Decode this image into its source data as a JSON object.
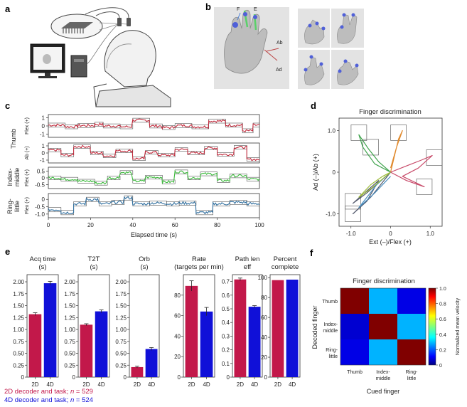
{
  "panels": {
    "a": "a",
    "b": "b",
    "c": "c",
    "d": "d",
    "e": "e",
    "f": "f"
  },
  "panel_b_labels": {
    "Ab": "Ab",
    "Ad": "Ad",
    "F": "F",
    "E": "E"
  },
  "colors": {
    "red": "#c2184a",
    "blue": "#1010d8",
    "thumb_trace": "#c0283a",
    "index_trace": "#3dbb3d",
    "ring_trace": "#2f6e9e",
    "target_box": "#555555"
  },
  "chart_data": [
    {
      "type": "line",
      "panel": "c",
      "xlabel": "Elapsed time (s)",
      "x_ticks": [
        0,
        20,
        40,
        60,
        80,
        100
      ],
      "xlim": [
        0,
        100
      ],
      "rows": [
        {
          "group": "Thumb",
          "label": "Flex (+)",
          "y_ticks": [
            1,
            0,
            -1
          ],
          "y_tick_labels": [
            "1",
            "0",
            "-1"
          ],
          "color": "#c0283a"
        },
        {
          "group": "Thumb",
          "label": "Ab (+)",
          "y_ticks": [
            1,
            0,
            -1
          ],
          "y_tick_labels": [
            "1",
            "0",
            "-1"
          ],
          "color": "#c0283a"
        },
        {
          "group": "Index-middle",
          "label": "Flex (+)",
          "y_ticks": [
            0.5,
            0,
            -0.5
          ],
          "y_tick_labels": [
            "0.5",
            "0",
            "-0.5"
          ],
          "color": "#3dbb3d"
        },
        {
          "group": "Ring-little",
          "label": "Flex (+)",
          "y_ticks": [
            0,
            -0.5,
            -1.0
          ],
          "y_tick_labels": [
            "0",
            "-0.5",
            "-1.0"
          ],
          "color": "#2f6e9e"
        }
      ],
      "groups": [
        "Thumb",
        "Index-middle",
        "Ring-little"
      ],
      "group_label_lines": {
        "Thumb": [
          "Thumb"
        ],
        "Index-middle": [
          "Index-",
          "middle"
        ],
        "Ring-little": [
          "Ring-",
          "little"
        ]
      }
    },
    {
      "type": "line",
      "panel": "d",
      "title": "Finger discrimination",
      "xlabel": "Ext (–)/Flex (+)",
      "ylabel": "Ad (–)/Ab (+)",
      "xlim": [
        -1.3,
        1.3
      ],
      "ylim": [
        -1.3,
        1.3
      ],
      "x_ticks": [
        -1.0,
        0,
        1.0
      ],
      "x_tick_labels": [
        "-1.0",
        "0",
        "1.0"
      ],
      "y_ticks": [
        1.0,
        0,
        -1.0
      ],
      "y_tick_labels": [
        "1.0",
        "0",
        "-1.0"
      ],
      "targets": [
        [
          -0.95,
          -0.7
        ],
        [
          -0.8,
          0.95
        ],
        [
          -0.5,
          0.6
        ],
        [
          0.2,
          0.95
        ],
        [
          1.1,
          0.35
        ],
        [
          0.85,
          -0.35
        ],
        [
          -0.95,
          -1.0
        ]
      ],
      "trajectories": [
        {
          "color": "#3fa34d",
          "points": [
            [
              0,
              0
            ],
            [
              -0.3,
              0.25
            ],
            [
              -0.55,
              0.55
            ],
            [
              -0.8,
              0.9
            ],
            [
              -0.7,
              0.6
            ],
            [
              -0.4,
              0.2
            ],
            [
              0,
              0
            ]
          ]
        },
        {
          "color": "#e08a2e",
          "points": [
            [
              0,
              0
            ],
            [
              0.1,
              0.4
            ],
            [
              0.2,
              0.8
            ],
            [
              0.3,
              1.0
            ],
            [
              0.15,
              0.6
            ],
            [
              0,
              0.1
            ]
          ]
        },
        {
          "color": "#c84b6a",
          "points": [
            [
              0,
              0
            ],
            [
              0.4,
              0.15
            ],
            [
              0.8,
              0.3
            ],
            [
              1.05,
              0.4
            ],
            [
              0.7,
              0.1
            ],
            [
              0.3,
              -0.1
            ],
            [
              0.85,
              -0.35
            ],
            [
              0.4,
              -0.2
            ],
            [
              0,
              0
            ]
          ]
        },
        {
          "color": "#555b6e",
          "points": [
            [
              0,
              0
            ],
            [
              -0.3,
              -0.25
            ],
            [
              -0.6,
              -0.5
            ],
            [
              -0.95,
              -0.75
            ],
            [
              -0.6,
              -0.45
            ],
            [
              -0.3,
              -0.2
            ],
            [
              -0.6,
              -0.7
            ],
            [
              -0.95,
              -1.0
            ],
            [
              -0.5,
              -0.6
            ],
            [
              0,
              0
            ]
          ]
        },
        {
          "color": "#4a8fc0",
          "points": [
            [
              0,
              0
            ],
            [
              -0.35,
              -0.3
            ],
            [
              -0.8,
              -0.85
            ],
            [
              -0.4,
              -0.5
            ],
            [
              0,
              -0.1
            ]
          ]
        },
        {
          "color": "#9dbb3a",
          "points": [
            [
              0,
              0
            ],
            [
              -0.2,
              -0.1
            ],
            [
              -0.5,
              -0.3
            ],
            [
              -0.8,
              -0.6
            ],
            [
              -0.5,
              -0.4
            ],
            [
              0,
              0
            ]
          ]
        }
      ]
    },
    {
      "type": "bar",
      "panel": "e",
      "categories": [
        "2D",
        "4D"
      ],
      "subplots": [
        {
          "title": [
            "Acq time",
            "(s)"
          ],
          "values": [
            1.32,
            1.97
          ],
          "errors": [
            0.03,
            0.04
          ],
          "ylim": [
            0,
            2.15
          ],
          "y_ticks": [
            "0",
            "0.25",
            "0.50",
            "0.75",
            "1.00",
            "1.25",
            "1.50",
            "1.75",
            "2.00"
          ],
          "y_tick_values": [
            0,
            0.25,
            0.5,
            0.75,
            1.0,
            1.25,
            1.5,
            1.75,
            2.0
          ]
        },
        {
          "title": [
            "T2T",
            "(s)"
          ],
          "values": [
            1.1,
            1.38
          ],
          "errors": [
            0.02,
            0.03
          ],
          "ylim": [
            0,
            2.15
          ],
          "y_ticks": [
            "0",
            "0.25",
            "0.50",
            "0.75",
            "1.00",
            "1.25",
            "1.50",
            "1.75",
            "2.00"
          ],
          "y_tick_values": [
            0,
            0.25,
            0.5,
            0.75,
            1.0,
            1.25,
            1.5,
            1.75,
            2.0
          ]
        },
        {
          "title": [
            "Orb",
            "(s)"
          ],
          "values": [
            0.21,
            0.59
          ],
          "errors": [
            0.02,
            0.03
          ],
          "ylim": [
            0,
            2.15
          ],
          "y_ticks": [
            "0",
            "0.25",
            "0.50",
            "0.75",
            "1.00",
            "1.25",
            "1.50",
            "1.75",
            "2.00"
          ],
          "y_tick_values": [
            0,
            0.25,
            0.5,
            0.75,
            1.0,
            1.25,
            1.5,
            1.75,
            2.0
          ]
        },
        {
          "title": [
            "Rate",
            "(targets per min)"
          ],
          "values": [
            89,
            64
          ],
          "errors": [
            5,
            4
          ],
          "ylim": [
            0,
            100
          ],
          "y_ticks": [
            "0",
            "20",
            "40",
            "60",
            "80"
          ],
          "y_tick_values": [
            0,
            20,
            40,
            60,
            80
          ]
        },
        {
          "title": [
            "Path len",
            "eff"
          ],
          "values": [
            0.715,
            0.515
          ],
          "errors": [
            0.01,
            0.008
          ],
          "ylim": [
            0,
            0.75
          ],
          "y_ticks": [
            "0",
            "0.1",
            "0.2",
            "0.3",
            "0.4",
            "0.5",
            "0.6",
            "0.7"
          ],
          "y_tick_values": [
            0,
            0.1,
            0.2,
            0.3,
            0.4,
            0.5,
            0.6,
            0.7
          ]
        },
        {
          "title": [
            "Percent",
            "complete"
          ],
          "values": [
            97.5,
            98
          ],
          "errors": [
            0,
            0
          ],
          "ylim": [
            0,
            103
          ],
          "y_ticks": [
            "0",
            "20",
            "40",
            "60",
            "80",
            "100"
          ],
          "y_tick_values": [
            0,
            20,
            40,
            60,
            80,
            100
          ]
        }
      ],
      "legend": [
        {
          "label": "2D decoder and task; ",
          "n_label": "n",
          "n_value": " = 529",
          "color": "#c2184a"
        },
        {
          "label": "4D decoder and task; ",
          "n_label": "n",
          "n_value": " = 524",
          "color": "#1010d8"
        }
      ]
    },
    {
      "type": "heatmap",
      "panel": "f",
      "title": "Finger discrimination",
      "xlabel": "Cued finger",
      "ylabel": "Decoded finger",
      "x_categories": [
        [
          "Thumb"
        ],
        [
          "Index-",
          "middle"
        ],
        [
          "Ring-",
          "little"
        ]
      ],
      "y_categories": [
        [
          "Thumb"
        ],
        [
          "Index-",
          "middle"
        ],
        [
          "Ring-",
          "little"
        ]
      ],
      "values": [
        [
          1.0,
          0.3,
          0.1
        ],
        [
          0.08,
          1.0,
          0.3
        ],
        [
          0.1,
          0.3,
          1.0
        ]
      ],
      "colorbar_label": "Normalized mean velocity",
      "colorbar_ticks": [
        0,
        0.2,
        0.4,
        0.6,
        0.8,
        1.0
      ],
      "colorbar_tick_labels": [
        "0",
        "0.2",
        "0.4",
        "0.6",
        "0.8",
        "1.0"
      ],
      "vmin": 0,
      "vmax": 1
    }
  ]
}
